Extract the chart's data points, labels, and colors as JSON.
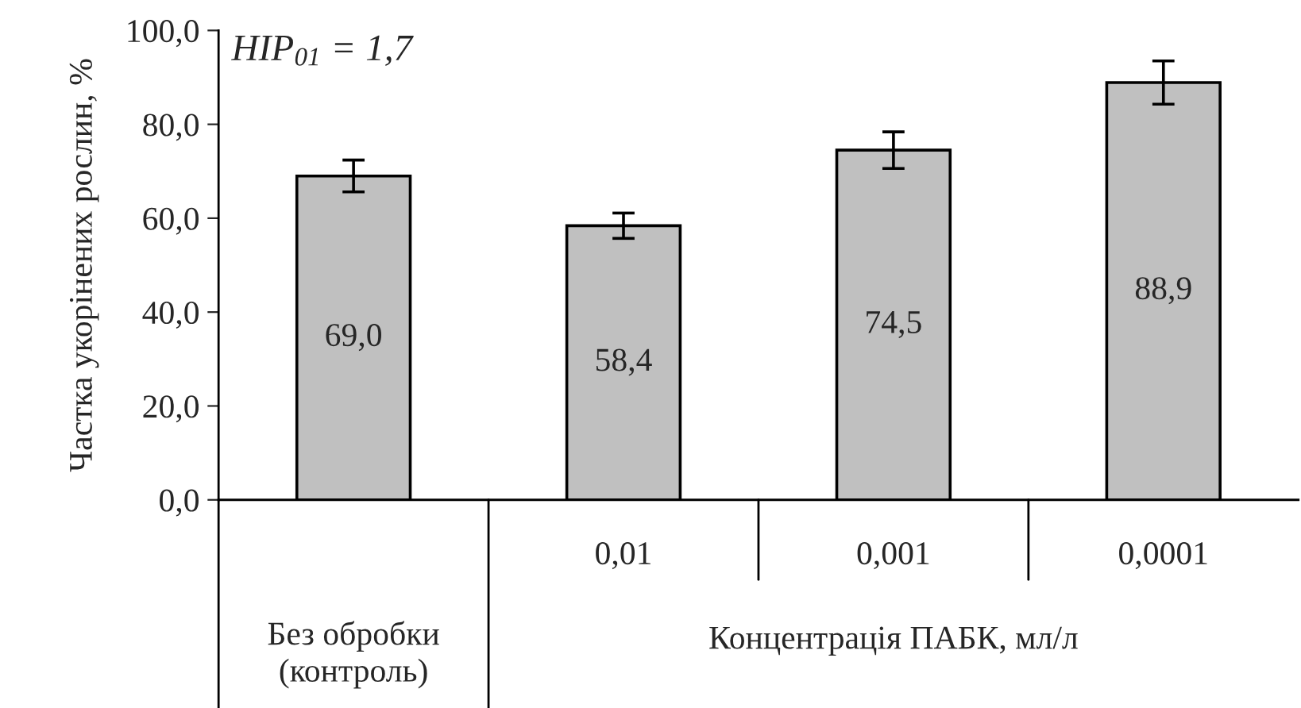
{
  "chart_data": {
    "type": "bar",
    "categories": [
      null,
      "0,01",
      "0,001",
      "0,0001"
    ],
    "values": [
      69.0,
      58.4,
      74.5,
      88.9
    ],
    "value_labels": [
      "69,0",
      "58,4",
      "74,5",
      "88,9"
    ],
    "errors": [
      3.4,
      2.7,
      3.9,
      4.6
    ],
    "color": "#c0c0c0",
    "xlabel": "Концентрація ПАБК, мл/л",
    "ylabel": "Частка укорінених рослин, %",
    "annotations": [
      "HIP$_{01}$ = 1,7",
      "Без обробки\n(контроль)"
    ],
    "ylim": [
      0,
      100
    ],
    "yticks": [
      {
        "value": 0,
        "label": "0,0"
      },
      {
        "value": 20,
        "label": "20,0"
      },
      {
        "value": 40,
        "label": "40,0"
      },
      {
        "value": 60,
        "label": "60,0"
      },
      {
        "value": 80,
        "label": "80,0"
      },
      {
        "value": 100,
        "label": "100,0"
      }
    ],
    "grid": false,
    "legend": false
  }
}
